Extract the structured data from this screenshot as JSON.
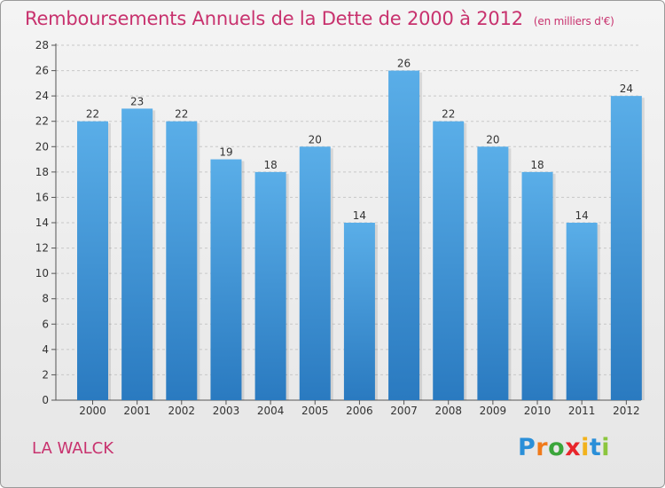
{
  "header": {
    "title": "Remboursements Annuels de la Dette de 2000 à 2012",
    "unit": "(en milliers d'€)"
  },
  "footer": {
    "place": "LA WALCK",
    "logo_letters": [
      "P",
      "r",
      "o",
      "x",
      "i",
      "t",
      "i"
    ],
    "logo_colors": [
      "#2a8fd8",
      "#f07a1a",
      "#3aa53a",
      "#e8252b",
      "#f2b21b",
      "#2a8fd8",
      "#8cc63e"
    ]
  },
  "colors": {
    "bar_top": "#5aaee8",
    "bar_bottom": "#2a7ac0",
    "title": "#c8326e",
    "grid": "#c8c8c8"
  },
  "chart_data": {
    "type": "bar",
    "title": "Remboursements Annuels de la Dette de 2000 à 2012",
    "subtitle": "(en milliers d'€)",
    "xlabel": "",
    "ylabel": "",
    "categories": [
      "2000",
      "2001",
      "2002",
      "2003",
      "2004",
      "2005",
      "2006",
      "2007",
      "2008",
      "2009",
      "2010",
      "2011",
      "2012"
    ],
    "values": [
      22,
      23,
      22,
      19,
      18,
      20,
      14,
      26,
      22,
      20,
      18,
      14,
      24
    ],
    "ylim": [
      0,
      28
    ],
    "yticks": [
      0,
      2,
      4,
      6,
      8,
      10,
      12,
      14,
      16,
      18,
      20,
      22,
      24,
      26,
      28
    ],
    "grid": true,
    "legend": "none"
  }
}
